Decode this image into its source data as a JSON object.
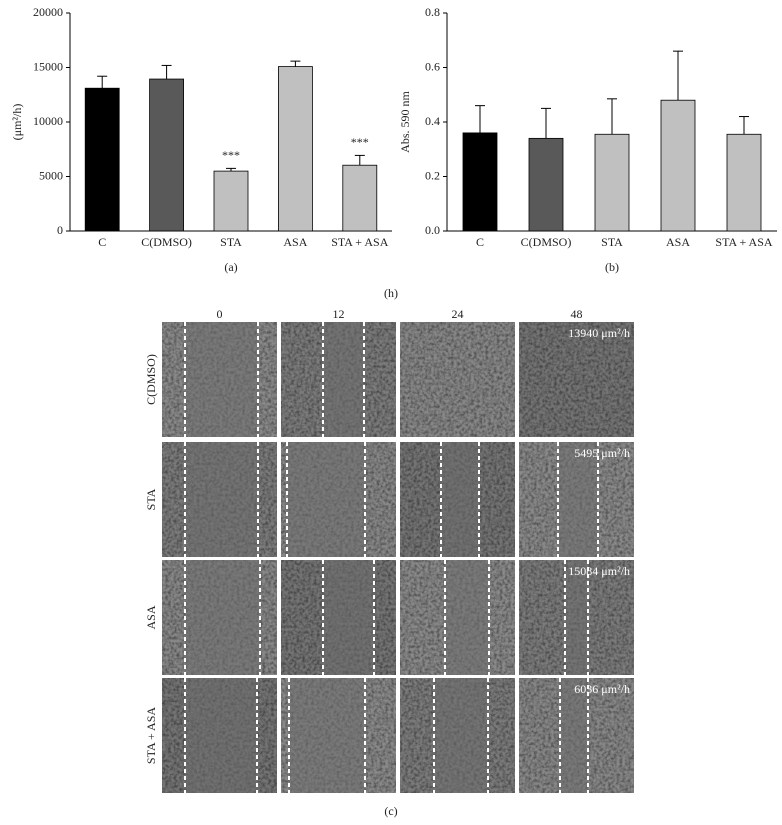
{
  "chart_data": [
    {
      "type": "bar",
      "panel": "(a)",
      "ylabel": "(μm²/h)",
      "categories": [
        "C",
        "C(DMSO)",
        "STA",
        "ASA",
        "STA + ASA"
      ],
      "values": [
        13100,
        13940,
        5495,
        15084,
        6036
      ],
      "errors": [
        1100,
        1250,
        250,
        500,
        900
      ],
      "colors": [
        "#000000",
        "#595959",
        "#c0c0c0",
        "#c0c0c0",
        "#c0c0c0"
      ],
      "annotations": [
        null,
        null,
        "***",
        null,
        "***"
      ],
      "ylim": [
        0,
        20000
      ],
      "yticks": [
        0,
        5000,
        10000,
        15000,
        20000
      ]
    },
    {
      "type": "bar",
      "panel": "(b)",
      "ylabel": "Abs. 590 nm",
      "categories": [
        "C",
        "C(DMSO)",
        "STA",
        "ASA",
        "STA + ASA"
      ],
      "values": [
        0.36,
        0.34,
        0.355,
        0.48,
        0.355
      ],
      "errors": [
        0.1,
        0.11,
        0.13,
        0.18,
        0.065
      ],
      "colors": [
        "#000000",
        "#595959",
        "#c0c0c0",
        "#c0c0c0",
        "#c0c0c0"
      ],
      "ylim": [
        0,
        0.8
      ],
      "yticks": [
        {
          "value": 0,
          "label": "0.0"
        },
        0.2,
        0.4,
        0.6,
        0.8
      ]
    }
  ],
  "figure_label": "(h)",
  "panel_c": {
    "label": "(c)",
    "columns": [
      "0",
      "12",
      "24",
      "48"
    ],
    "rows": [
      "C(DMSO)",
      "STA",
      "ASA",
      "STA + ASA"
    ],
    "rates": [
      "13940 μm²/h",
      "5495 μm²/h",
      "15084 μm²/h",
      "6036 μm²/h"
    ]
  }
}
